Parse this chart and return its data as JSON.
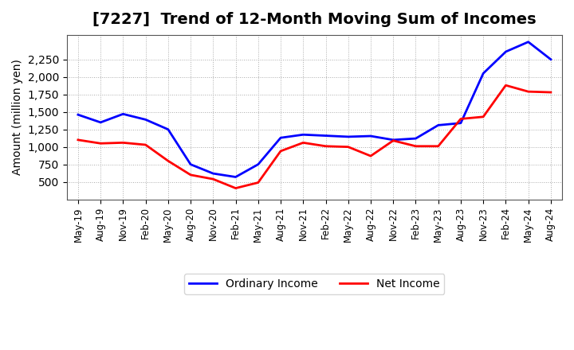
{
  "title": "[7227]  Trend of 12-Month Moving Sum of Incomes",
  "ylabel": "Amount (million yen)",
  "x_labels": [
    "May-19",
    "Aug-19",
    "Nov-19",
    "Feb-20",
    "May-20",
    "Aug-20",
    "Nov-20",
    "Feb-21",
    "May-21",
    "Aug-21",
    "Nov-21",
    "Feb-22",
    "May-22",
    "Aug-22",
    "Nov-22",
    "Feb-23",
    "May-23",
    "Aug-23",
    "Nov-23",
    "Feb-24",
    "May-24",
    "Aug-24"
  ],
  "ordinary_income": [
    1460,
    1350,
    1470,
    1390,
    1250,
    750,
    620,
    570,
    750,
    1130,
    1175,
    1160,
    1145,
    1155,
    1100,
    1120,
    1310,
    1340,
    2050,
    2360,
    2500,
    2250
  ],
  "net_income": [
    1100,
    1050,
    1060,
    1030,
    800,
    600,
    540,
    410,
    490,
    940,
    1060,
    1010,
    1000,
    870,
    1090,
    1010,
    1010,
    1400,
    1430,
    1880,
    1790,
    1780
  ],
  "ordinary_color": "#0000ff",
  "net_color": "#ff0000",
  "background_color": "#ffffff",
  "grid_color": "#aaaaaa",
  "ylim_min": 250,
  "ylim_max": 2600,
  "yticks": [
    500,
    750,
    1000,
    1250,
    1500,
    1750,
    2000,
    2250
  ],
  "title_fontsize": 14,
  "legend_labels": [
    "Ordinary Income",
    "Net Income"
  ]
}
